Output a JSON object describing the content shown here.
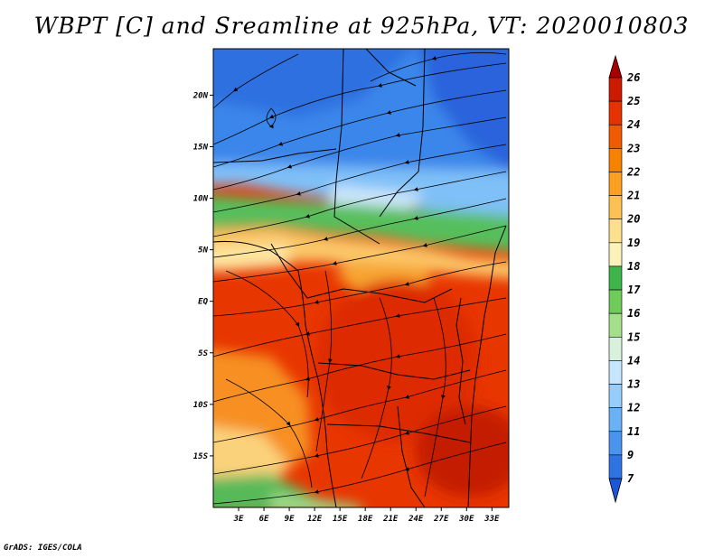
{
  "title": "WBPT [C] and Sreamline at 925hPa, VT: 2020010803",
  "credit": "GrADS: IGES/COLA",
  "map": {
    "lat_labels": [
      "20N",
      "15N",
      "10N",
      "5N",
      "EQ",
      "5S",
      "10S",
      "15S"
    ],
    "lat_values": [
      20,
      15,
      10,
      5,
      0,
      -5,
      -10,
      -15
    ],
    "lon_labels": [
      "3E",
      "6E",
      "9E",
      "12E",
      "15E",
      "18E",
      "21E",
      "24E",
      "27E",
      "30E",
      "33E"
    ],
    "lon_values": [
      3,
      6,
      9,
      12,
      15,
      18,
      21,
      24,
      27,
      30,
      33
    ],
    "lat_range": [
      -20,
      24.5
    ],
    "lon_range": [
      0,
      35
    ]
  },
  "colorbar": {
    "labels": [
      "26",
      "25",
      "24",
      "23",
      "22",
      "21",
      "20",
      "19",
      "18",
      "17",
      "16",
      "15",
      "14",
      "13",
      "12",
      "11",
      "9",
      "7"
    ],
    "colors": [
      "#a50000",
      "#cc1a00",
      "#e63200",
      "#f05a00",
      "#f78200",
      "#fba020",
      "#fcc155",
      "#fde08e",
      "#fbf2bb",
      "#3db54a",
      "#6fcb5a",
      "#a4e08c",
      "#d8f1dc",
      "#c6e6ff",
      "#96cdfb",
      "#6bb1f5",
      "#4a94ee",
      "#2f73e3",
      "#1c58d6"
    ]
  }
}
